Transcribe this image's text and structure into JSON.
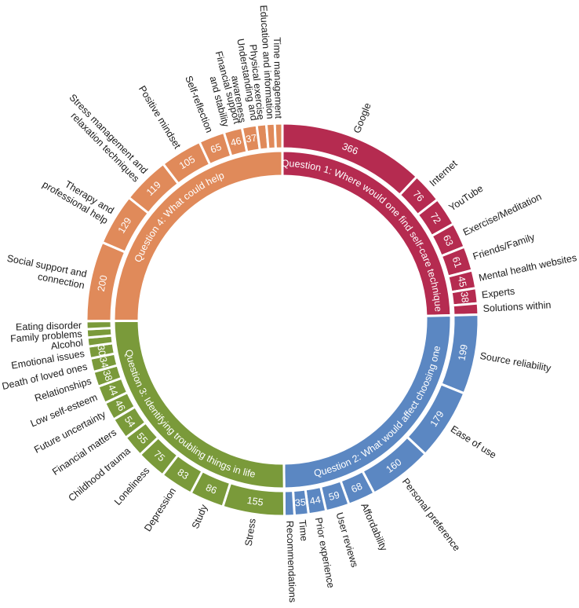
{
  "chart_data": {
    "type": "sunburst",
    "title": "",
    "center": [
      360,
      407
    ],
    "radii": {
      "inner_in": 183,
      "inner_out": 215,
      "outer_in": 218,
      "outer_out": 250
    },
    "start_angle_deg": 0,
    "direction": "clockwise",
    "groups": [
      {
        "name": "Question 1: Where would one find self-care techniques",
        "color": "#B52B50",
        "children": [
          {
            "label": "Google",
            "value": 366,
            "show_value": true
          },
          {
            "label": "Internet",
            "value": 76,
            "show_value": true
          },
          {
            "label": "YouTube",
            "value": 72,
            "show_value": true
          },
          {
            "label": "Exercise/Meditation",
            "value": 63,
            "show_value": true
          },
          {
            "label": "Friends/Family",
            "value": 61,
            "show_value": true
          },
          {
            "label": "Mental health websites",
            "value": 45,
            "show_value": true
          },
          {
            "label": "Experts",
            "value": 38,
            "show_value": true
          },
          {
            "label": "Solutions within",
            "value": 28,
            "show_value": false
          }
        ]
      },
      {
        "name": "Question 2: What would affect choosing one",
        "color": "#5B87C2",
        "children": [
          {
            "label": "Source reliability",
            "value": 199,
            "show_value": true
          },
          {
            "label": "Ease of use",
            "value": 179,
            "show_value": true
          },
          {
            "label": "Personal preference",
            "value": 160,
            "show_value": true
          },
          {
            "label": "Affordability",
            "value": 68,
            "show_value": true
          },
          {
            "label": "User reviews",
            "value": 59,
            "show_value": true
          },
          {
            "label": "Prior experience",
            "value": 44,
            "show_value": true
          },
          {
            "label": "Time",
            "value": 35,
            "show_value": true
          },
          {
            "label": "Recommendations",
            "value": 25,
            "show_value": false
          }
        ]
      },
      {
        "name": "Question 3: Identifying troubling things in life",
        "color": "#7A9A3A",
        "children": [
          {
            "label": "Stress",
            "value": 155,
            "show_value": true
          },
          {
            "label": "Study",
            "value": 86,
            "show_value": true
          },
          {
            "label": "Depression",
            "value": 83,
            "show_value": true
          },
          {
            "label": "Loneliness",
            "value": 75,
            "show_value": true
          },
          {
            "label": "Childhood trauma",
            "value": 55,
            "show_value": true
          },
          {
            "label": "Financial matters",
            "value": 54,
            "show_value": true
          },
          {
            "label": "Future uncertainty",
            "value": 46,
            "show_value": true
          },
          {
            "label": "Low self-esteem",
            "value": 44,
            "show_value": true
          },
          {
            "label": "Relationships",
            "value": 38,
            "show_value": true
          },
          {
            "label": "Death of loved ones",
            "value": 34,
            "show_value": true
          },
          {
            "label": "Emotional issues",
            "value": 30,
            "show_value": true
          },
          {
            "label": "Alcohol",
            "value": 22,
            "show_value": false
          },
          {
            "label": "Family problems",
            "value": 21,
            "show_value": false
          },
          {
            "label": "Eating disorder",
            "value": 20,
            "show_value": false
          }
        ]
      },
      {
        "name": "Question 4: What could help",
        "color": "#E08A5A",
        "children": [
          {
            "label": "Social support and connection",
            "value": 200,
            "show_value": true
          },
          {
            "label": "Therapy and professional help",
            "value": 129,
            "show_value": true
          },
          {
            "label": "Stress management and relaxation techniques",
            "value": 119,
            "show_value": true
          },
          {
            "label": "Positive mindset",
            "value": 105,
            "show_value": true
          },
          {
            "label": "Self-reflection",
            "value": 65,
            "show_value": true
          },
          {
            "label": "Financial support and stability",
            "value": 46,
            "show_value": true
          },
          {
            "label": "Understanding and awareness",
            "value": 37,
            "show_value": true
          },
          {
            "label": "Physical exercise",
            "value": 24,
            "show_value": false
          },
          {
            "label": "Education and information",
            "value": 21,
            "show_value": false
          },
          {
            "label": "Time management",
            "value": 19,
            "show_value": false
          }
        ]
      }
    ],
    "legend": null,
    "grid": false
  }
}
